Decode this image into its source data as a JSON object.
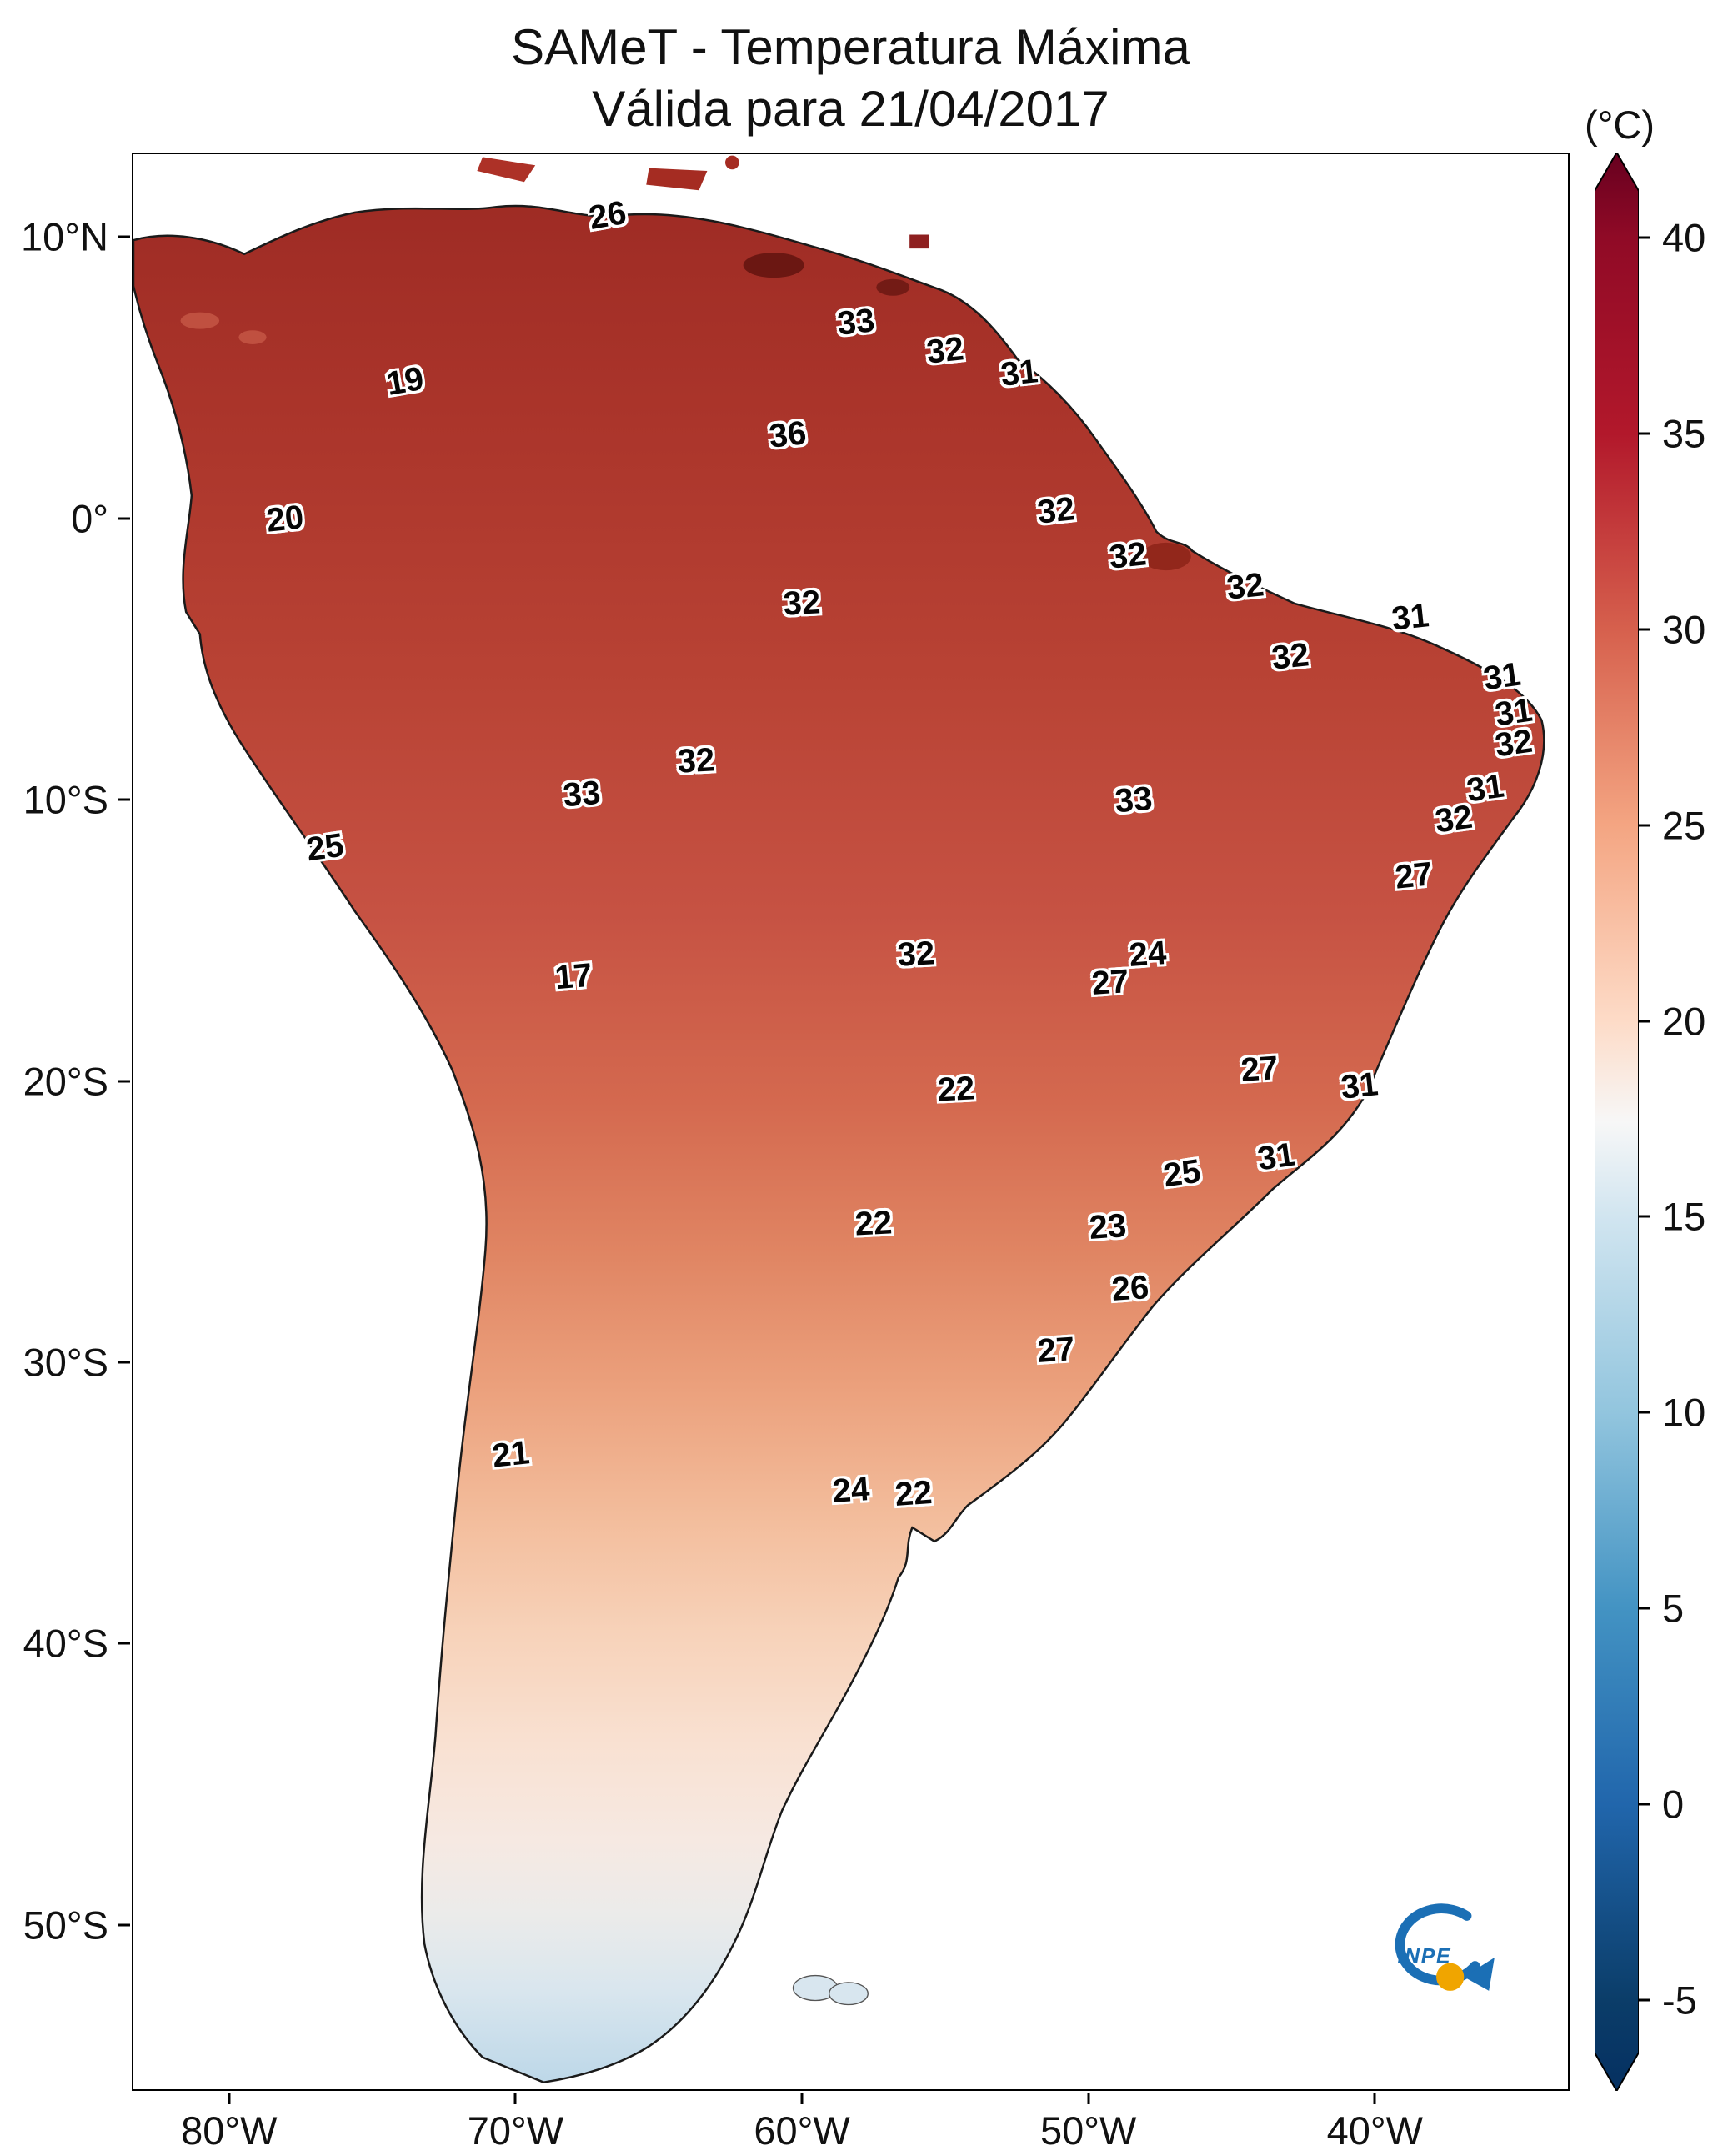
{
  "title": {
    "line1": "SAMeT - Temperatura Máxima",
    "line2": "Válida para 21/04/2017"
  },
  "logo": {
    "text": "INPE"
  },
  "axes": {
    "lat_ticks": [
      {
        "label": "10°N",
        "value": 10
      },
      {
        "label": "0°",
        "value": 0
      },
      {
        "label": "10°S",
        "value": -10
      },
      {
        "label": "20°S",
        "value": -20
      },
      {
        "label": "30°S",
        "value": -30
      },
      {
        "label": "40°S",
        "value": -40
      },
      {
        "label": "50°S",
        "value": -50
      }
    ],
    "lon_ticks": [
      {
        "label": "80°W",
        "value": -80
      },
      {
        "label": "70°W",
        "value": -70
      },
      {
        "label": "60°W",
        "value": -60
      },
      {
        "label": "50°W",
        "value": -50
      },
      {
        "label": "40°W",
        "value": -40
      }
    ]
  },
  "colorbar": {
    "unit_label": "(°C)",
    "ticks": [
      40,
      35,
      30,
      25,
      20,
      15,
      10,
      5,
      0,
      -5
    ],
    "range": [
      -5,
      40
    ],
    "top_tick_pct": 4.4,
    "pct_per_unit": 2.02,
    "colormap": "RdBu_r"
  },
  "chart_data": {
    "type": "heatmap",
    "title": "SAMeT - Temperatura Máxima",
    "subtitle": "Válida para 21/04/2017",
    "date": "21/04/2017",
    "variable": "Temperatura Máxima",
    "unit": "°C",
    "region": "South America",
    "lon_range": [
      -83.4,
      -33.2
    ],
    "lat_range": [
      13.0,
      -55.9
    ],
    "colorbar_range": [
      -5,
      40
    ],
    "annotations": [
      {
        "value": 26,
        "lon": -66.8,
        "lat": 10.8,
        "rot": -10
      },
      {
        "value": 33,
        "lon": -58.1,
        "lat": 7.0,
        "rot": -6
      },
      {
        "value": 32,
        "lon": -55.0,
        "lat": 6.0,
        "rot": -6
      },
      {
        "value": 31,
        "lon": -52.4,
        "lat": 5.2,
        "rot": -6
      },
      {
        "value": 19,
        "lon": -73.9,
        "lat": 4.9,
        "rot": -10
      },
      {
        "value": 36,
        "lon": -60.5,
        "lat": 3.0,
        "rot": -6
      },
      {
        "value": 20,
        "lon": -78.1,
        "lat": 0.0,
        "rot": -6
      },
      {
        "value": 32,
        "lon": -51.1,
        "lat": 0.3,
        "rot": -6
      },
      {
        "value": 32,
        "lon": -48.6,
        "lat": -1.3,
        "rot": -6
      },
      {
        "value": 32,
        "lon": -60.0,
        "lat": -3.0,
        "rot": -3
      },
      {
        "value": 32,
        "lon": -44.5,
        "lat": -2.4,
        "rot": -6
      },
      {
        "value": 31,
        "lon": -38.7,
        "lat": -3.5,
        "rot": -6
      },
      {
        "value": 32,
        "lon": -42.9,
        "lat": -4.9,
        "rot": -6
      },
      {
        "value": 31,
        "lon": -35.5,
        "lat": -5.6,
        "rot": -8
      },
      {
        "value": 31,
        "lon": -35.1,
        "lat": -6.9,
        "rot": -8
      },
      {
        "value": 32,
        "lon": -35.1,
        "lat": -8.0,
        "rot": -8
      },
      {
        "value": 32,
        "lon": -63.7,
        "lat": -8.6,
        "rot": -3
      },
      {
        "value": 33,
        "lon": -67.7,
        "lat": -9.8,
        "rot": -5
      },
      {
        "value": 33,
        "lon": -48.4,
        "lat": -10.0,
        "rot": -5
      },
      {
        "value": 31,
        "lon": -36.1,
        "lat": -9.6,
        "rot": -8
      },
      {
        "value": 32,
        "lon": -37.2,
        "lat": -10.7,
        "rot": -8
      },
      {
        "value": 25,
        "lon": -76.7,
        "lat": -11.7,
        "rot": -8
      },
      {
        "value": 27,
        "lon": -38.6,
        "lat": -12.7,
        "rot": -6
      },
      {
        "value": 24,
        "lon": -47.9,
        "lat": -15.5,
        "rot": -4
      },
      {
        "value": 32,
        "lon": -56.0,
        "lat": -15.5,
        "rot": -3
      },
      {
        "value": 27,
        "lon": -49.2,
        "lat": -16.5,
        "rot": -4
      },
      {
        "value": 17,
        "lon": -68.0,
        "lat": -16.3,
        "rot": -5
      },
      {
        "value": 22,
        "lon": -54.6,
        "lat": -20.3,
        "rot": -3
      },
      {
        "value": 27,
        "lon": -44.0,
        "lat": -19.6,
        "rot": -4
      },
      {
        "value": 31,
        "lon": -40.5,
        "lat": -20.2,
        "rot": -6
      },
      {
        "value": 25,
        "lon": -46.7,
        "lat": -23.3,
        "rot": -8
      },
      {
        "value": 31,
        "lon": -43.4,
        "lat": -22.7,
        "rot": -8
      },
      {
        "value": 22,
        "lon": -57.5,
        "lat": -25.1,
        "rot": -3
      },
      {
        "value": 23,
        "lon": -49.3,
        "lat": -25.2,
        "rot": -4
      },
      {
        "value": 26,
        "lon": -48.5,
        "lat": -27.4,
        "rot": -4
      },
      {
        "value": 27,
        "lon": -51.1,
        "lat": -29.6,
        "rot": -4
      },
      {
        "value": 21,
        "lon": -70.2,
        "lat": -33.3,
        "rot": -6
      },
      {
        "value": 24,
        "lon": -58.3,
        "lat": -34.6,
        "rot": -4
      },
      {
        "value": 22,
        "lon": -56.1,
        "lat": -34.7,
        "rot": -4
      }
    ]
  }
}
